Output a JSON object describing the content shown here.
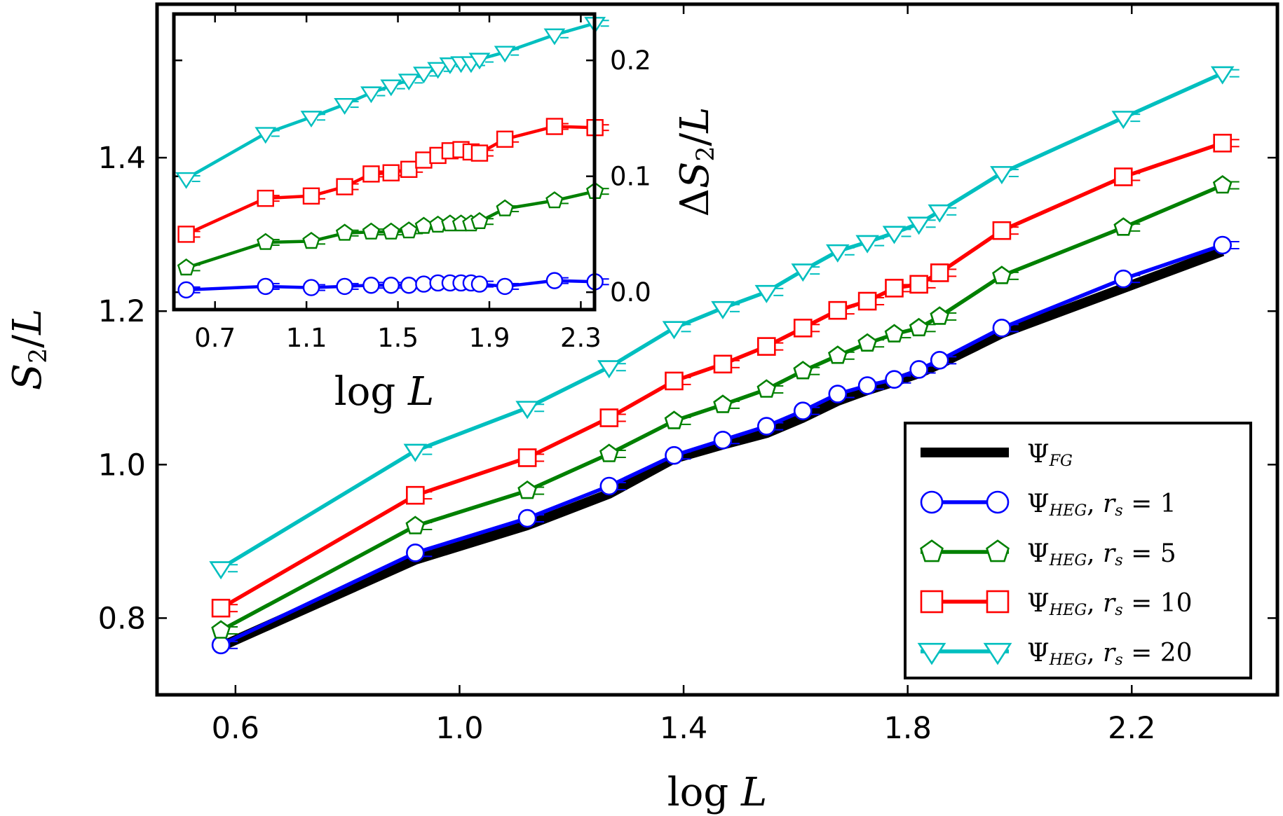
{
  "chart_data": [
    {
      "type": "line",
      "ylabel": "S_2/L",
      "xlabel": "log L",
      "xlim": [
        0.46,
        2.46
      ],
      "ylim": [
        0.7,
        1.6
      ],
      "xticks": [
        "0.6",
        "1.0",
        "1.4",
        "1.8",
        "2.2"
      ],
      "xtick_values": [
        0.6,
        1.0,
        1.4,
        1.8,
        2.2
      ],
      "yticks": [
        "0.8",
        "1.0",
        "1.2",
        "1.4"
      ],
      "ytick_values": [
        0.8,
        1.0,
        1.2,
        1.4
      ],
      "legend_position": "lower-right",
      "x": [
        0.574,
        0.921,
        1.121,
        1.267,
        1.383,
        1.47,
        1.548,
        1.613,
        1.675,
        1.728,
        1.776,
        1.82,
        1.857,
        1.968,
        2.185,
        2.362
      ],
      "series": [
        {
          "name": "Ψ_FG",
          "label": "Ψ",
          "sub": "FG",
          "extra": "",
          "color": "#000000",
          "marker": "none",
          "values": [
            0.763,
            0.876,
            0.921,
            0.962,
            1.008,
            1.026,
            1.041,
            1.061,
            1.083,
            1.097,
            1.108,
            1.119,
            1.131,
            1.171,
            1.23,
            1.278
          ]
        },
        {
          "name": "Ψ_HEG, r_s = 1",
          "label": "Ψ",
          "sub": "HEG",
          "extra": ", r",
          "extra_sub": "s",
          "extra_tail": " = 1",
          "color": "#0000ff",
          "marker": "circle",
          "values": [
            0.765,
            0.885,
            0.93,
            0.972,
            1.012,
            1.032,
            1.05,
            1.07,
            1.092,
            1.103,
            1.111,
            1.124,
            1.136,
            1.178,
            1.242,
            1.286
          ]
        },
        {
          "name": "Ψ_HEG, r_s = 5",
          "label": "Ψ",
          "sub": "HEG",
          "extra": ", r",
          "extra_sub": "s",
          "extra_tail": " = 5",
          "color": "#008000",
          "marker": "pentagon",
          "values": [
            0.784,
            0.92,
            0.966,
            1.014,
            1.057,
            1.078,
            1.098,
            1.122,
            1.142,
            1.158,
            1.17,
            1.178,
            1.193,
            1.246,
            1.309,
            1.364
          ]
        },
        {
          "name": "Ψ_HEG, r_s = 10",
          "label": "Ψ",
          "sub": "HEG",
          "extra": ", r",
          "extra_sub": "s",
          "extra_tail": " = 10",
          "color": "#ff0000",
          "marker": "square",
          "values": [
            0.813,
            0.96,
            1.009,
            1.061,
            1.109,
            1.131,
            1.154,
            1.178,
            1.201,
            1.213,
            1.23,
            1.235,
            1.25,
            1.305,
            1.375,
            1.419
          ]
        },
        {
          "name": "Ψ_HEG, r_s = 20",
          "label": "Ψ",
          "sub": "HEG",
          "extra": ", r",
          "extra_sub": "s",
          "extra_tail": " = 20",
          "color": "#00bfbf",
          "marker": "triangle-down",
          "values": [
            0.865,
            1.018,
            1.074,
            1.127,
            1.178,
            1.204,
            1.225,
            1.253,
            1.278,
            1.29,
            1.302,
            1.314,
            1.33,
            1.38,
            1.452,
            1.51
          ]
        }
      ]
    },
    {
      "type": "line",
      "inset": true,
      "xlabel": "log L",
      "ylabel": "ΔS_2/L",
      "xlim": [
        0.52,
        2.36
      ],
      "ylim": [
        -0.015,
        0.24
      ],
      "xticks": [
        "0.7",
        "1.1",
        "1.5",
        "1.9",
        "2.3"
      ],
      "xtick_values": [
        0.7,
        1.1,
        1.5,
        1.9,
        2.3
      ],
      "yticks": [
        "0.0",
        "0.1",
        "0.2"
      ],
      "ytick_values": [
        0.0,
        0.1,
        0.2
      ],
      "x": [
        0.574,
        0.921,
        1.121,
        1.267,
        1.383,
        1.47,
        1.548,
        1.613,
        1.675,
        1.728,
        1.776,
        1.82,
        1.857,
        1.968,
        2.185,
        2.362
      ],
      "series": [
        {
          "name": "r_s = 1",
          "color": "#0000ff",
          "marker": "circle",
          "values": [
            0.002,
            0.005,
            0.004,
            0.005,
            0.006,
            0.006,
            0.006,
            0.007,
            0.008,
            0.008,
            0.008,
            0.008,
            0.007,
            0.005,
            0.01,
            0.009
          ]
        },
        {
          "name": "r_s = 5",
          "color": "#008000",
          "marker": "pentagon",
          "values": [
            0.021,
            0.043,
            0.044,
            0.051,
            0.052,
            0.052,
            0.053,
            0.057,
            0.058,
            0.059,
            0.059,
            0.059,
            0.061,
            0.072,
            0.079,
            0.087
          ]
        },
        {
          "name": "r_s = 10",
          "color": "#ff0000",
          "marker": "square",
          "values": [
            0.05,
            0.081,
            0.083,
            0.091,
            0.102,
            0.103,
            0.106,
            0.114,
            0.118,
            0.122,
            0.123,
            0.121,
            0.12,
            0.132,
            0.143,
            0.142
          ]
        },
        {
          "name": "r_s = 20",
          "color": "#00bfbf",
          "marker": "triangle-down",
          "values": [
            0.098,
            0.137,
            0.151,
            0.162,
            0.172,
            0.178,
            0.183,
            0.189,
            0.193,
            0.197,
            0.198,
            0.198,
            0.201,
            0.207,
            0.222,
            0.232
          ]
        }
      ]
    }
  ]
}
